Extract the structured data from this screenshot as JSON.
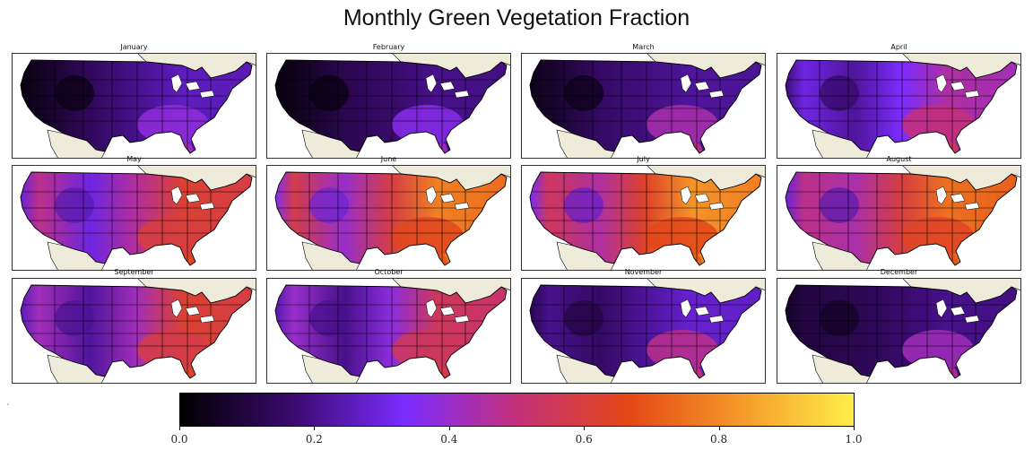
{
  "title": "Monthly Green Vegetation Fraction",
  "colors": {
    "land_outside": "#eeebda",
    "water": "#ffffff",
    "border": "#000000",
    "colormap": [
      "#000000",
      "#3a0a6e",
      "#7b2cff",
      "#c4307a",
      "#e44816",
      "#f59a2a",
      "#ffee4a"
    ]
  },
  "map_data": {
    "type": "choropleth-panels",
    "variable": "Green Vegetation Fraction",
    "months": [
      {
        "name": "January",
        "west": 0.05,
        "plains": 0.14,
        "east": 0.26,
        "southeast": 0.38
      },
      {
        "name": "February",
        "west": 0.04,
        "plains": 0.12,
        "east": 0.2,
        "southeast": 0.36
      },
      {
        "name": "March",
        "west": 0.06,
        "plains": 0.15,
        "east": 0.22,
        "southeast": 0.44
      },
      {
        "name": "April",
        "west": 0.3,
        "plains": 0.22,
        "east": 0.45,
        "southeast": 0.5
      },
      {
        "name": "May",
        "west": 0.48,
        "plains": 0.3,
        "east": 0.62,
        "southeast": 0.6
      },
      {
        "name": "June",
        "west": 0.58,
        "plains": 0.4,
        "east": 0.78,
        "southeast": 0.65
      },
      {
        "name": "July",
        "west": 0.55,
        "plains": 0.45,
        "east": 0.82,
        "southeast": 0.66
      },
      {
        "name": "August",
        "west": 0.48,
        "plains": 0.44,
        "east": 0.75,
        "southeast": 0.64
      },
      {
        "name": "September",
        "west": 0.42,
        "plains": 0.22,
        "east": 0.62,
        "southeast": 0.58
      },
      {
        "name": "October",
        "west": 0.4,
        "plains": 0.2,
        "east": 0.55,
        "southeast": 0.55
      },
      {
        "name": "November",
        "west": 0.2,
        "plains": 0.15,
        "east": 0.28,
        "southeast": 0.48
      },
      {
        "name": "December",
        "west": 0.1,
        "plains": 0.12,
        "east": 0.2,
        "southeast": 0.42
      }
    ]
  },
  "colorbar": {
    "min": 0.0,
    "max": 1.0,
    "ticks": [
      "0.0",
      "0.2",
      "0.4",
      "0.6",
      "0.8",
      "1.0"
    ]
  }
}
